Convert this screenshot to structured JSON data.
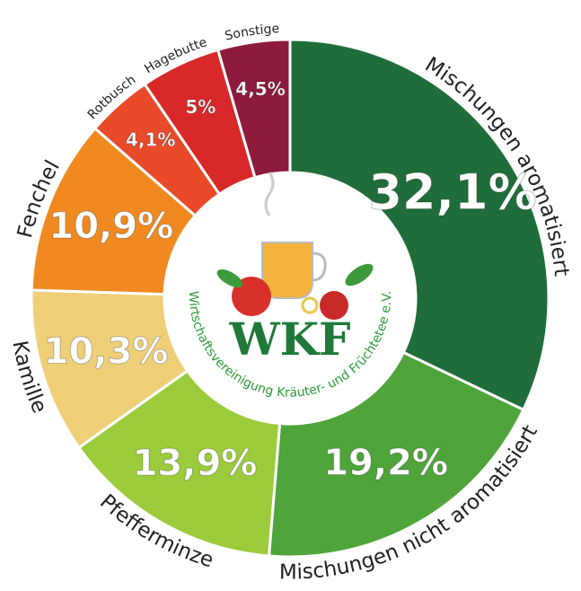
{
  "chart_data": {
    "type": "donut",
    "categories": [
      "Mischungen aromatisiert",
      "Mischungen nicht aromatisiert",
      "Pfefferminze",
      "Kamille",
      "Fenchel",
      "Rotbusch",
      "Hagebutte",
      "Sonstige"
    ],
    "values": [
      32.1,
      19.2,
      13.9,
      10.3,
      10.9,
      4.1,
      5,
      4.5
    ],
    "value_labels": [
      "32,1%",
      "19,2%",
      "13,9%",
      "10,3%",
      "10,9%",
      "4,1%",
      "5%",
      "4,5%"
    ],
    "colors": [
      "#1f6d3a",
      "#4fa43a",
      "#9ccb3b",
      "#efcf78",
      "#f08a20",
      "#e84a2a",
      "#d8282a",
      "#8e1a3c"
    ],
    "logo_text": "WKF",
    "logo_caption": "Wirtschaftsvereinigung Kräuter- und Früchtetee e.V."
  }
}
